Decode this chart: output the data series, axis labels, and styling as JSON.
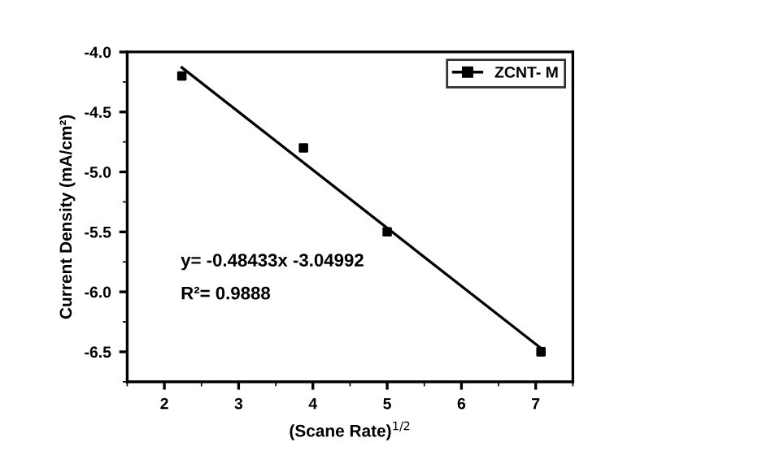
{
  "chart_data": {
    "type": "scatter",
    "xlabel": "(Scane Rate)$^{1/2}$",
    "ylabel": "Current Density (mA/cm²)",
    "xlim": [
      1.5,
      7.5
    ],
    "xticks": [
      2,
      3,
      4,
      5,
      6,
      7
    ],
    "ylim": [
      -6.75,
      -4.0
    ],
    "yticks": [
      -6.5,
      {
        "value": -6,
        "label": "-6.0"
      },
      -5.5,
      {
        "value": -5,
        "label": "-5.0"
      },
      -4.5,
      {
        "value": -4,
        "label": "-4.0"
      }
    ],
    "series": [
      {
        "name": "ZCNT- M",
        "color": "#000000",
        "marker": "square",
        "x": [
          2.236,
          3.873,
          5.0,
          7.071
        ],
        "values": [
          -4.2,
          -4.8,
          -5.5,
          -6.5
        ]
      },
      {
        "type": "line",
        "color": "#000000",
        "marker": "none",
        "line_style": "solid",
        "x": [
          2.236,
          7.071
        ],
        "values": [
          -4.13,
          -6.47
        ]
      }
    ],
    "annotations": [
      "y= -0.48433x -3.04992",
      "R²= 0.9888"
    ],
    "legend": "top right",
    "grid": false
  }
}
